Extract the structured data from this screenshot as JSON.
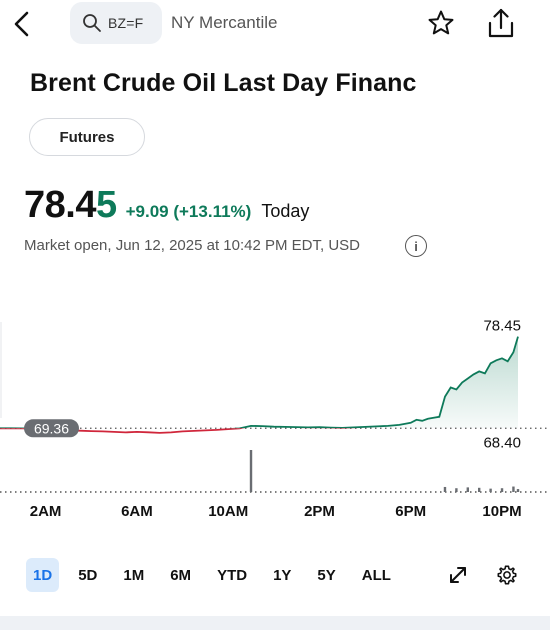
{
  "header": {
    "symbol": "BZ=F",
    "exchange": "NY Mercantile"
  },
  "quote": {
    "title": "Brent Crude Oil Last Day Financ",
    "chip": "Futures",
    "price_main": "78.4",
    "price_last": "5",
    "change": "+9.09 (+13.11%)",
    "period": "Today",
    "market_status": "Market open, Jun 12, 2025 at 10:42 PM EDT, USD"
  },
  "colors": {
    "positive": "#0e7a5a",
    "negative": "#d0263b",
    "accent": "#1a73e8"
  },
  "chart_data": {
    "type": "line",
    "x_labels": [
      "2AM",
      "6AM",
      "10AM",
      "2PM",
      "6PM",
      "10PM"
    ],
    "prev_close_label": "69.36",
    "last_label": "78.45",
    "low_label": "68.40",
    "prev_close": 69.36,
    "ylim": [
      68.0,
      79.5
    ],
    "hours": [
      0,
      0.5,
      1,
      1.5,
      2,
      2.5,
      3,
      3.5,
      4,
      4.5,
      5,
      5.5,
      6,
      6.5,
      7,
      7.5,
      8,
      8.5,
      9,
      9.5,
      10,
      10.5,
      11,
      11.5,
      12,
      12.5,
      13,
      13.5,
      14,
      14.5,
      15,
      15.5,
      16,
      16.5,
      17,
      17.5,
      18,
      18.25,
      18.5,
      18.75,
      19,
      19.25,
      19.5,
      19.75,
      20,
      20.25,
      20.5,
      20.75,
      21,
      21.25,
      21.5,
      21.75,
      22.0,
      22.25,
      22.5,
      22.7
    ],
    "prices": [
      69.36,
      69.36,
      69.35,
      69.32,
      69.28,
      69.2,
      69.15,
      69.12,
      69.08,
      69.05,
      69.0,
      68.95,
      69.0,
      68.96,
      68.9,
      68.95,
      69.05,
      69.1,
      69.15,
      69.2,
      69.28,
      69.35,
      69.6,
      69.58,
      69.52,
      69.5,
      69.48,
      69.45,
      69.47,
      69.43,
      69.4,
      69.45,
      69.5,
      69.55,
      69.6,
      69.7,
      69.9,
      70.2,
      70.1,
      70.3,
      70.4,
      70.5,
      72.5,
      73.4,
      73.2,
      73.9,
      74.3,
      74.7,
      75.0,
      74.8,
      75.8,
      76.1,
      76.3,
      76.0,
      76.9,
      78.45
    ],
    "volume": [
      {
        "h": 11.0,
        "v": 100
      },
      {
        "h": 19.5,
        "v": 12
      },
      {
        "h": 20.0,
        "v": 9
      },
      {
        "h": 20.5,
        "v": 11
      },
      {
        "h": 21.0,
        "v": 10
      },
      {
        "h": 21.5,
        "v": 8
      },
      {
        "h": 22.0,
        "v": 9
      },
      {
        "h": 22.5,
        "v": 13
      },
      {
        "h": 22.7,
        "v": 7
      }
    ]
  },
  "ranges": {
    "items": [
      "1D",
      "5D",
      "1M",
      "6M",
      "YTD",
      "1Y",
      "5Y",
      "ALL"
    ],
    "active": "1D"
  }
}
